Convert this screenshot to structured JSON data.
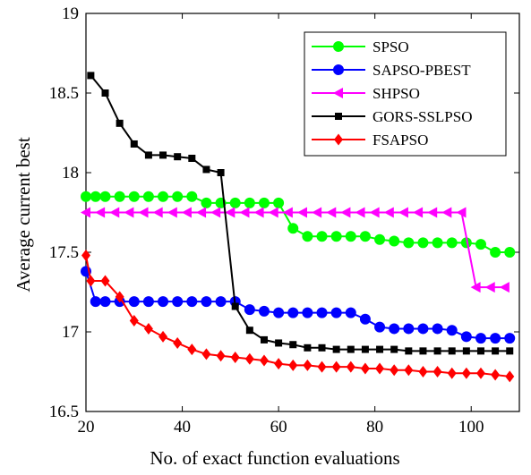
{
  "chart_data": {
    "type": "line",
    "xlabel": "No. of exact function evaluations",
    "ylabel": "Average current best",
    "xlim": [
      20,
      110
    ],
    "ylim": [
      16.5,
      19
    ],
    "xticks": [
      20,
      40,
      60,
      80,
      100
    ],
    "yticks": [
      16.5,
      17,
      17.5,
      18,
      18.5,
      19
    ],
    "ytick_labels": [
      "16.5",
      "17",
      "17.5",
      "18",
      "18.5",
      "19"
    ],
    "grid": false,
    "legend_position": "top-right",
    "series": [
      {
        "name": "SPSO",
        "color": "#00ff00",
        "marker": "circle",
        "x": [
          20,
          22,
          24,
          27,
          30,
          33,
          36,
          39,
          42,
          45,
          48,
          51,
          54,
          57,
          60,
          63,
          66,
          69,
          72,
          75,
          78,
          81,
          84,
          87,
          90,
          93,
          96,
          99,
          102,
          105,
          108
        ],
        "y": [
          17.85,
          17.85,
          17.85,
          17.85,
          17.85,
          17.85,
          17.85,
          17.85,
          17.85,
          17.81,
          17.81,
          17.81,
          17.81,
          17.81,
          17.81,
          17.65,
          17.6,
          17.6,
          17.6,
          17.6,
          17.6,
          17.58,
          17.57,
          17.56,
          17.56,
          17.56,
          17.56,
          17.56,
          17.55,
          17.5,
          17.5
        ]
      },
      {
        "name": "SAPSO-PBEST",
        "color": "#0000ff",
        "marker": "circle",
        "x": [
          20,
          22,
          24,
          27,
          30,
          33,
          36,
          39,
          42,
          45,
          48,
          51,
          54,
          57,
          60,
          63,
          66,
          69,
          72,
          75,
          78,
          81,
          84,
          87,
          90,
          93,
          96,
          99,
          102,
          105,
          108
        ],
        "y": [
          17.38,
          17.19,
          17.19,
          17.19,
          17.19,
          17.19,
          17.19,
          17.19,
          17.19,
          17.19,
          17.19,
          17.19,
          17.14,
          17.13,
          17.12,
          17.12,
          17.12,
          17.12,
          17.12,
          17.12,
          17.08,
          17.03,
          17.02,
          17.02,
          17.02,
          17.02,
          17.01,
          16.97,
          16.96,
          16.96,
          16.96
        ]
      },
      {
        "name": "SHPSO",
        "color": "#ff00ff",
        "marker": "triangle-left",
        "x": [
          20,
          23,
          26,
          29,
          32,
          35,
          38,
          41,
          44,
          47,
          50,
          53,
          56,
          59,
          62,
          65,
          68,
          71,
          74,
          77,
          80,
          83,
          86,
          89,
          92,
          95,
          98,
          101,
          104,
          107
        ],
        "y": [
          17.75,
          17.75,
          17.75,
          17.75,
          17.75,
          17.75,
          17.75,
          17.75,
          17.75,
          17.75,
          17.75,
          17.75,
          17.75,
          17.75,
          17.75,
          17.75,
          17.75,
          17.75,
          17.75,
          17.75,
          17.75,
          17.75,
          17.75,
          17.75,
          17.75,
          17.75,
          17.75,
          17.28,
          17.28,
          17.28
        ]
      },
      {
        "name": "GORS-SSLPSO",
        "color": "#000000",
        "marker": "square",
        "x": [
          21,
          24,
          27,
          30,
          33,
          36,
          39,
          42,
          45,
          48,
          51,
          54,
          57,
          60,
          63,
          66,
          69,
          72,
          75,
          78,
          81,
          84,
          87,
          90,
          93,
          96,
          99,
          102,
          105,
          108
        ],
        "y": [
          18.61,
          18.5,
          18.31,
          18.18,
          18.11,
          18.11,
          18.1,
          18.09,
          18.02,
          18.0,
          17.16,
          17.01,
          16.95,
          16.93,
          16.92,
          16.9,
          16.9,
          16.89,
          16.89,
          16.89,
          16.89,
          16.89,
          16.88,
          16.88,
          16.88,
          16.88,
          16.88,
          16.88,
          16.88,
          16.88
        ]
      },
      {
        "name": "FSAPSO",
        "color": "#ff0000",
        "marker": "diamond",
        "x": [
          20,
          21,
          24,
          27,
          30,
          33,
          36,
          39,
          42,
          45,
          48,
          51,
          54,
          57,
          60,
          63,
          66,
          69,
          72,
          75,
          78,
          81,
          84,
          87,
          90,
          93,
          96,
          99,
          102,
          105,
          108
        ],
        "y": [
          17.48,
          17.32,
          17.32,
          17.22,
          17.07,
          17.02,
          16.97,
          16.93,
          16.89,
          16.86,
          16.85,
          16.84,
          16.83,
          16.82,
          16.8,
          16.79,
          16.79,
          16.78,
          16.78,
          16.78,
          16.77,
          16.77,
          16.76,
          16.76,
          16.75,
          16.75,
          16.74,
          16.74,
          16.74,
          16.73,
          16.72
        ]
      }
    ]
  }
}
